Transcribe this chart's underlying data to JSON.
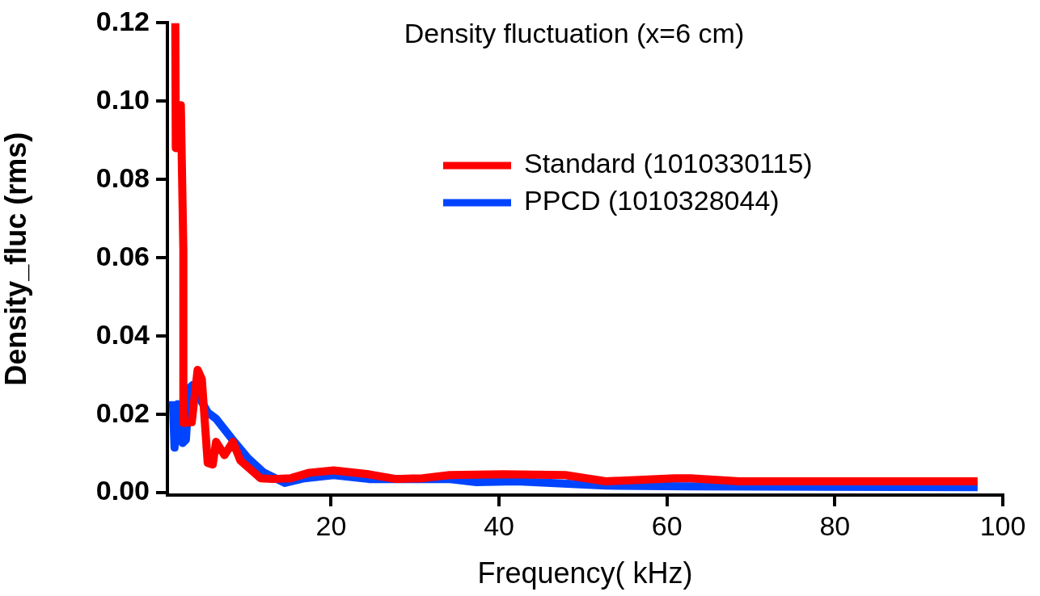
{
  "chart_data": {
    "type": "line",
    "title": "Density fluctuation (x=6 cm)",
    "xlabel": "Frequency( kHz)",
    "ylabel": "Density_fluc (rms)",
    "xlim": [
      0.5,
      100
    ],
    "xticks": [
      20,
      40,
      60,
      80,
      100
    ],
    "ylim": [
      -0.0006,
      0.12
    ],
    "yticks": [
      0.12,
      {
        "value": 0.1,
        "label": "0.10"
      },
      0.08,
      0.06,
      0.04,
      0.02,
      {
        "value": 0,
        "label": "0.00"
      }
    ],
    "grid": false,
    "legend": "top right",
    "marker": "none",
    "line_style": "solid",
    "series": [
      {
        "name": "Standard (1010330115)",
        "color": "#ff0000",
        "x": [
          1.44,
          1.5,
          2.1,
          2.4,
          2.4,
          3.4,
          4.1,
          4.6,
          5.3,
          5.9,
          6.3,
          7.3,
          8.3,
          9.2,
          11.6,
          13,
          15.2,
          17.4,
          20.3,
          24.5,
          27.7,
          30.9,
          34.1,
          40.5,
          47.9,
          52.7,
          60.9,
          62.8,
          68.6,
          97
        ],
        "values": [
          0.12,
          0.088,
          0.099,
          0.062,
          0.0178,
          0.018,
          0.0314,
          0.029,
          0.0076,
          0.0072,
          0.013,
          0.0096,
          0.013,
          0.0082,
          0.0037,
          0.0035,
          0.0037,
          0.0051,
          0.0057,
          0.0047,
          0.0035,
          0.0037,
          0.0045,
          0.0047,
          0.0045,
          0.0029,
          0.0037,
          0.0037,
          0.0029,
          0.0029
        ]
      },
      {
        "name": "PPCD (1010328044)",
        "color": "#0044ff",
        "x": [
          1.15,
          1.35,
          1.7,
          2.3,
          2.7,
          3.1,
          3.5,
          5.3,
          6.3,
          8.2,
          10.1,
          12,
          14.5,
          16.8,
          20.3,
          24.5,
          29.3,
          34,
          37.3,
          42.1,
          52.7,
          62.8,
          97
        ],
        "values": [
          0.0234,
          0.0115,
          0.0226,
          0.0127,
          0.0135,
          0.0267,
          0.0275,
          0.0205,
          0.0189,
          0.0137,
          0.0088,
          0.0051,
          0.0025,
          0.0037,
          0.0045,
          0.0035,
          0.0035,
          0.0035,
          0.0027,
          0.0029,
          0.0018,
          0.0016,
          0.0014
        ]
      }
    ]
  }
}
